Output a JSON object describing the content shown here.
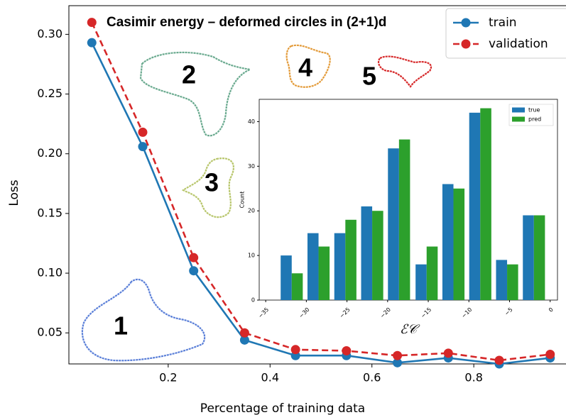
{
  "chart_data": [
    {
      "type": "line",
      "title": "Casimir energy – deformed circles in (2+1)d",
      "xlabel": "Percentage of training data",
      "ylabel": "Loss",
      "x": [
        0.05,
        0.15,
        0.25,
        0.35,
        0.45,
        0.55,
        0.65,
        0.75,
        0.85,
        0.95
      ],
      "series": [
        {
          "name": "train",
          "color": "#1f77b4",
          "linestyle": "solid",
          "values": [
            0.293,
            0.206,
            0.102,
            0.044,
            0.031,
            0.031,
            0.025,
            0.029,
            0.024,
            0.029
          ]
        },
        {
          "name": "validation",
          "color": "#d62728",
          "linestyle": "dashed",
          "values": [
            0.31,
            0.218,
            0.113,
            0.05,
            0.036,
            0.035,
            0.031,
            0.033,
            0.027,
            0.032
          ]
        }
      ],
      "xlim": [
        0.005,
        0.995
      ],
      "ylim": [
        0.024,
        0.324
      ],
      "xticks": [
        0.2,
        0.4,
        0.6,
        0.8
      ],
      "yticks": [
        0.05,
        {
          "value": 0.1,
          "label": "0.10"
        },
        0.15,
        {
          "value": 0.2,
          "label": "0.20"
        },
        0.25,
        {
          "value": 0.3,
          "label": "0.30"
        }
      ],
      "legend": "upper right",
      "annotations": [
        {
          "text": "1",
          "color": "#4a6fcc"
        },
        {
          "text": "2",
          "color": "#5fa88c"
        },
        {
          "text": "3",
          "color": "#aabf5e"
        },
        {
          "text": "4",
          "color": "#e39b3a"
        },
        {
          "text": "5",
          "color": "#d62728"
        }
      ]
    },
    {
      "type": "bar",
      "xlabel": "ℰ𝒞",
      "ylabel": "Count",
      "x": [
        -31.8,
        -28.5,
        -25.2,
        -21.9,
        -18.6,
        -15.2,
        -11.9,
        -8.6,
        -5.3,
        -2.0
      ],
      "series": [
        {
          "name": "true",
          "color": "#1f77b4",
          "values": [
            10,
            15,
            15,
            21,
            34,
            8,
            26,
            42,
            9,
            19
          ]
        },
        {
          "name": "pred",
          "color": "#2ca02c",
          "values": [
            6,
            12,
            18,
            20,
            36,
            12,
            25,
            43,
            8,
            19
          ]
        }
      ],
      "xlim": [
        -35.8,
        0.9
      ],
      "ylim": [
        0,
        45
      ],
      "xticks": [
        {
          "value": -35,
          "label": "−35"
        },
        {
          "value": -30,
          "label": "−30"
        },
        {
          "value": -25,
          "label": "−25"
        },
        {
          "value": -20,
          "label": "−20"
        },
        {
          "value": -15,
          "label": "−15"
        },
        {
          "value": -10,
          "label": "−10"
        },
        {
          "value": -5,
          "label": "−5"
        },
        0
      ],
      "yticks": [
        0,
        10,
        20,
        30,
        40
      ],
      "legend": "upper right"
    }
  ]
}
